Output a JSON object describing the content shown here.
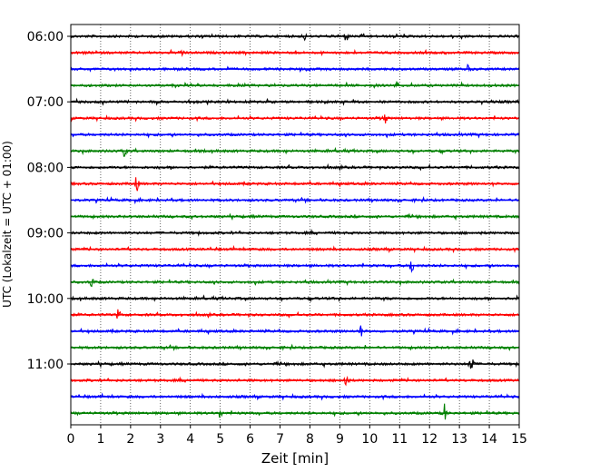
{
  "chart_data": {
    "type": "line",
    "plot_kind": "helicorder",
    "xlabel": "Zeit  [min]",
    "ylabel": "UTC (Lokalzeit = UTC + 01:00)",
    "xlim": [
      0,
      15
    ],
    "x_ticks": [
      "0",
      "1",
      "2",
      "3",
      "4",
      "5",
      "6",
      "7",
      "8",
      "9",
      "10",
      "11",
      "12",
      "13",
      "14",
      "15"
    ],
    "y_tick_labels": [
      "06:00",
      "07:00",
      "08:00",
      "09:00",
      "10:00",
      "11:00"
    ],
    "grid": "vertical dotted lines at each minute",
    "trace_colors": [
      "#000000",
      "#ff0000",
      "#0000ff",
      "#008000"
    ],
    "rows": [
      {
        "start": "06:00",
        "color": "#000000"
      },
      {
        "start": "06:15",
        "color": "#ff0000"
      },
      {
        "start": "06:30",
        "color": "#0000ff"
      },
      {
        "start": "06:45",
        "color": "#008000"
      },
      {
        "start": "07:00",
        "color": "#000000"
      },
      {
        "start": "07:15",
        "color": "#ff0000"
      },
      {
        "start": "07:30",
        "color": "#0000ff"
      },
      {
        "start": "07:45",
        "color": "#008000"
      },
      {
        "start": "08:00",
        "color": "#000000"
      },
      {
        "start": "08:15",
        "color": "#ff0000"
      },
      {
        "start": "08:30",
        "color": "#0000ff"
      },
      {
        "start": "08:45",
        "color": "#008000"
      },
      {
        "start": "09:00",
        "color": "#000000"
      },
      {
        "start": "09:15",
        "color": "#ff0000"
      },
      {
        "start": "09:30",
        "color": "#0000ff"
      },
      {
        "start": "09:45",
        "color": "#008000"
      },
      {
        "start": "10:00",
        "color": "#000000"
      },
      {
        "start": "10:15",
        "color": "#ff0000"
      },
      {
        "start": "10:30",
        "color": "#0000ff"
      },
      {
        "start": "10:45",
        "color": "#008000"
      },
      {
        "start": "11:00",
        "color": "#000000"
      },
      {
        "start": "11:15",
        "color": "#ff0000"
      },
      {
        "start": "11:30",
        "color": "#0000ff"
      },
      {
        "start": "11:45",
        "color": "#008000"
      }
    ],
    "events": [
      {
        "start": "06:00",
        "minute": 7.8,
        "amplitude": 0.3
      },
      {
        "start": "06:00",
        "minute": 9.2,
        "amplitude": 0.3
      },
      {
        "start": "06:15",
        "minute": 3.75,
        "amplitude": 0.35
      },
      {
        "start": "06:30",
        "minute": 13.3,
        "amplitude": 0.3
      },
      {
        "start": "06:45",
        "minute": 10.9,
        "amplitude": 0.25
      },
      {
        "start": "07:15",
        "minute": 10.5,
        "amplitude": 0.55
      },
      {
        "start": "07:45",
        "minute": 1.8,
        "amplitude": 0.4
      },
      {
        "start": "08:15",
        "minute": 2.2,
        "amplitude": 0.6
      },
      {
        "start": "09:30",
        "minute": 11.4,
        "amplitude": 0.6
      },
      {
        "start": "09:45",
        "minute": 0.7,
        "amplitude": 0.45
      },
      {
        "start": "10:00",
        "minute": 14.9,
        "amplitude": 0.4
      },
      {
        "start": "10:15",
        "minute": 1.6,
        "amplitude": 0.45
      },
      {
        "start": "10:30",
        "minute": 9.7,
        "amplitude": 0.4
      },
      {
        "start": "11:00",
        "minute": 13.4,
        "amplitude": 1.0
      },
      {
        "start": "11:15",
        "minute": 9.2,
        "amplitude": 0.55
      },
      {
        "start": "11:45",
        "minute": 5.0,
        "amplitude": 0.35
      },
      {
        "start": "11:45",
        "minute": 12.5,
        "amplitude": 0.75
      }
    ]
  }
}
